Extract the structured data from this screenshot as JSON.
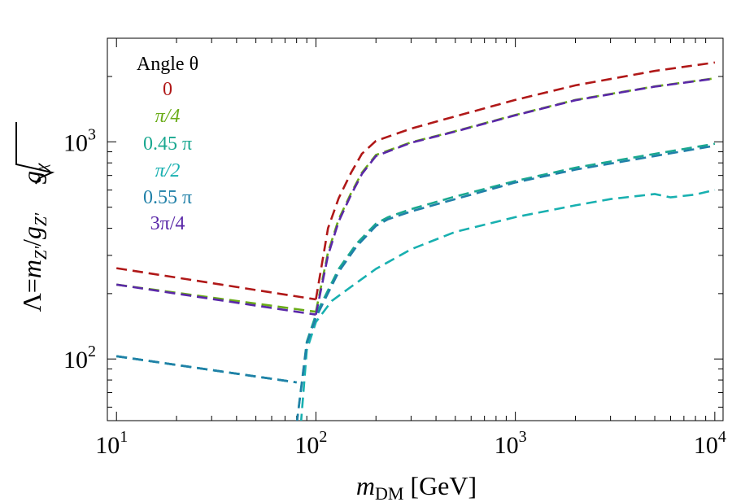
{
  "chart_data": {
    "type": "line",
    "title": "",
    "xscale": "log",
    "yscale": "log",
    "xlim": [
      9,
      11000
    ],
    "ylim": [
      52,
      3000
    ],
    "xlabel": {
      "main": "m",
      "sub": "DM",
      "unit": "[GeV]"
    },
    "ylabel": {
      "lhs": "Λ=",
      "m": "m",
      "m_sub": "Z'",
      "slash": "/",
      "g": "g",
      "g_sub": "Z'",
      "root_g": "g",
      "root_g_sub": "χ"
    },
    "x_ticks": [
      {
        "value": 10,
        "base": "10",
        "exp": "1"
      },
      {
        "value": 100,
        "base": "10",
        "exp": "2"
      },
      {
        "value": 1000,
        "base": "10",
        "exp": "3"
      },
      {
        "value": 10000,
        "base": "10",
        "exp": "4"
      }
    ],
    "y_ticks": [
      {
        "value": 100,
        "base": "10",
        "exp": "2"
      },
      {
        "value": 1000,
        "base": "10",
        "exp": "3"
      }
    ],
    "legend": {
      "title": "Angle θ",
      "placement": "top-left",
      "entries": [
        "0",
        "π/4",
        "0.45 π",
        "π/2",
        "0.55 π",
        "3π/4"
      ]
    },
    "series": [
      {
        "name": "0",
        "color": "#b01818",
        "dash": "dashed",
        "segments": [
          {
            "x": [
              10,
              100
            ],
            "y": [
              262,
              188
            ]
          },
          {
            "x": [
              100,
              115,
              130,
              150,
              170,
              200,
              300,
              500,
              1000,
              2000,
              5000,
              10000
            ],
            "y": [
              188,
              400,
              550,
              720,
              880,
              1010,
              1150,
              1310,
              1560,
              1820,
              2120,
              2320
            ]
          }
        ]
      },
      {
        "name": "π/4",
        "color": "#6aac18",
        "dash": "dashed",
        "segments": [
          {
            "x": [
              10,
              100
            ],
            "y": [
              220,
              165
            ]
          },
          {
            "x": [
              100,
              115,
              130,
              150,
              170,
              200,
              300,
              500,
              1000,
              2000,
              5000,
              10000
            ],
            "y": [
              165,
              310,
              440,
              580,
              720,
              870,
              995,
              1120,
              1330,
              1560,
              1800,
              1960
            ]
          }
        ]
      },
      {
        "name": "0.45 π",
        "color": "#1aa890",
        "dash": "dashed",
        "segments": [
          {
            "x": [
              10,
              80
            ],
            "y": [
              103,
              78
            ]
          },
          {
            "x": [
              80,
              90,
              100,
              130,
              160,
              200,
              230,
              300,
              500,
              1000,
              2000,
              5000,
              10000
            ],
            "y": [
              50,
              120,
              160,
              260,
              340,
              420,
              450,
              490,
              560,
              660,
              760,
              880,
              980
            ]
          }
        ]
      },
      {
        "name": "π/2",
        "color": "#18b0b0",
        "dash": "dashed",
        "segments": [
          {
            "x": [
              10,
              80
            ],
            "y": [
              103,
              78
            ]
          },
          {
            "x": [
              84,
              90,
              100,
              120,
              150,
              200,
              300,
              500,
              1000,
              2000,
              3000,
              5000,
              6000,
              8000,
              10000
            ],
            "y": [
              50,
              110,
              148,
              185,
              215,
              260,
              320,
              385,
              450,
              510,
              545,
              575,
              555,
              572,
              600
            ]
          }
        ]
      },
      {
        "name": "0.55 π",
        "color": "#2080a8",
        "dash": "dashed",
        "segments": [
          {
            "x": [
              10,
              80
            ],
            "y": [
              103,
              78
            ]
          },
          {
            "x": [
              80,
              90,
              100,
              130,
              160,
              200,
              230,
              300,
              500,
              1000,
              2000,
              5000,
              10000
            ],
            "y": [
              50,
              118,
              155,
              252,
              330,
              410,
              440,
              478,
              545,
              650,
              745,
              860,
              960
            ]
          }
        ]
      },
      {
        "name": "3π/4",
        "color": "#5a28a8",
        "dash": "dashed",
        "segments": [
          {
            "x": [
              10,
              100
            ],
            "y": [
              220,
              160
            ]
          },
          {
            "x": [
              100,
              115,
              130,
              150,
              170,
              200,
              300,
              500,
              1000,
              2000,
              5000,
              10000
            ],
            "y": [
              160,
              300,
              430,
              570,
              710,
              860,
              990,
              1115,
              1325,
              1555,
              1795,
              1955
            ]
          }
        ]
      }
    ]
  }
}
